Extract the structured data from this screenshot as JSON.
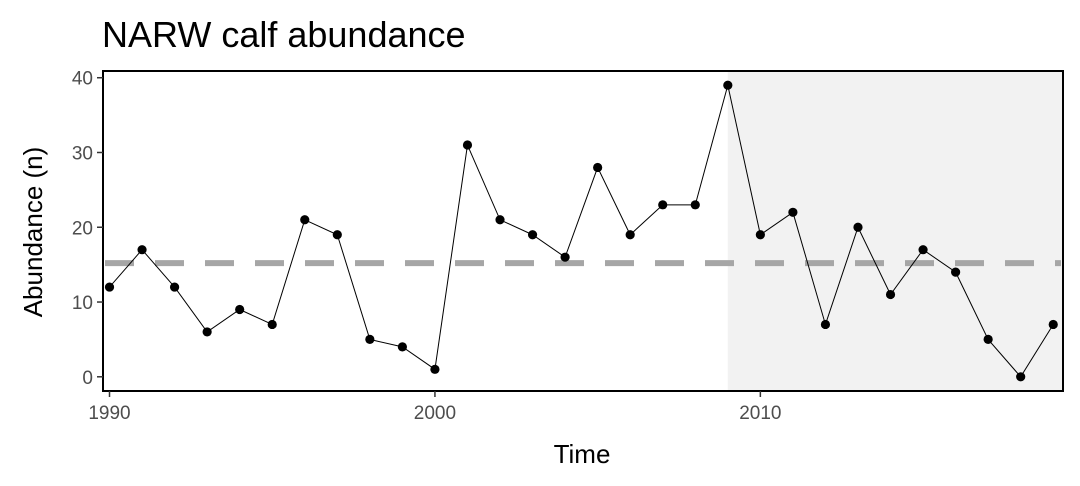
{
  "chart_data": {
    "type": "line",
    "title": "NARW calf abundance",
    "xlabel": "Time",
    "ylabel": "Abundance (n)",
    "xlim": [
      1989.8,
      2019.3
    ],
    "ylim": [
      -1.9,
      40.9
    ],
    "x_ticks": [
      1990,
      2000,
      2010
    ],
    "x_tick_labels": [
      "1990",
      "2000",
      "2010"
    ],
    "y_ticks": [
      0,
      10,
      20,
      30,
      40
    ],
    "y_tick_labels": [
      "0",
      "10",
      "20",
      "30",
      "40"
    ],
    "grid": false,
    "series": [
      {
        "x": [
          1990,
          1991,
          1992,
          1993,
          1994,
          1995,
          1996,
          1997,
          1998,
          1999,
          2000,
          2001,
          2002,
          2003,
          2004,
          2005,
          2006,
          2007,
          2008,
          2009,
          2010,
          2011,
          2012,
          2013,
          2014,
          2015,
          2016,
          2017,
          2018,
          2019
        ],
        "y": [
          12,
          17,
          12,
          6,
          9,
          7,
          21,
          19,
          5,
          4,
          1,
          31,
          21,
          19,
          16,
          28,
          19,
          23,
          23,
          39,
          19,
          22,
          7,
          20,
          11,
          17,
          14,
          5,
          0,
          7
        ]
      }
    ],
    "reference_line": {
      "y": 15.2,
      "style": "dashed"
    },
    "shaded_region": {
      "x_start": 2009,
      "x_end": 2019.3
    },
    "colors": {
      "points": "#000000",
      "line": "#000000",
      "reference": "#a6a6a6",
      "shade": "#f2f2f2"
    }
  }
}
